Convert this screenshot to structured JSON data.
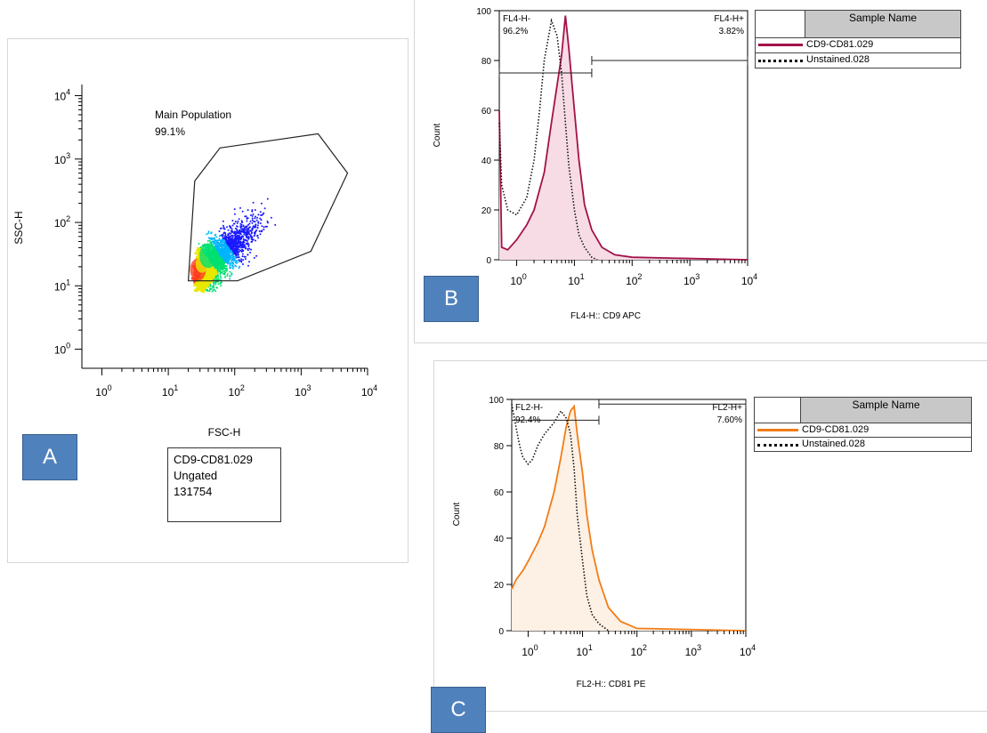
{
  "panels": {
    "a": {
      "tag": "A"
    },
    "b": {
      "tag": "B"
    },
    "c": {
      "tag": "C"
    }
  },
  "chart_data": [
    {
      "type": "scatter",
      "panel": "A",
      "xlabel": "FSC-H",
      "ylabel": "SSC-H",
      "xscale": "log",
      "yscale": "log",
      "xlim": [
        0.5,
        10000
      ],
      "ylim": [
        0.5,
        15000
      ],
      "x_ticks": [
        "10",
        "10",
        "10",
        "10",
        "10"
      ],
      "x_tick_exp": [
        "0",
        "1",
        "2",
        "3",
        "4"
      ],
      "y_ticks": [
        "10",
        "10",
        "10",
        "10",
        "10"
      ],
      "y_tick_exp": [
        "0",
        "1",
        "2",
        "3",
        "4"
      ],
      "gate": {
        "name": "Main Population",
        "percent": "99.1%",
        "vertices": [
          [
            20,
            12
          ],
          [
            25,
            450
          ],
          [
            60,
            1500
          ],
          [
            1800,
            2500
          ],
          [
            5000,
            600
          ],
          [
            1400,
            35
          ],
          [
            110,
            12
          ]
        ]
      },
      "info_box": [
        "CD9-CD81.029",
        "Ungated",
        "131754"
      ],
      "density_colors": [
        "#1a1aff",
        "#00b4ff",
        "#00e070",
        "#e8e800",
        "#ff4020"
      ]
    },
    {
      "type": "histogram",
      "panel": "B",
      "xlabel": "FL4-H:: CD9 APC",
      "ylabel": "Count",
      "xscale": "log",
      "xlim": [
        0.5,
        10000
      ],
      "ylim": [
        0,
        100
      ],
      "x_ticks": [
        "10",
        "10",
        "10",
        "10",
        "10"
      ],
      "x_tick_exp": [
        "0",
        "1",
        "2",
        "3",
        "4"
      ],
      "y_ticks": [
        "0",
        "20",
        "40",
        "60",
        "80",
        "100"
      ],
      "gates": [
        {
          "name": "FL4-H-",
          "percent": "96.2%",
          "range": [
            0.5,
            20
          ],
          "y": 75
        },
        {
          "name": "FL4-H+",
          "percent": "3.82%",
          "range": [
            20,
            10000
          ],
          "y": 80
        }
      ],
      "legend_header": "Sample Name",
      "series": [
        {
          "name": "CD9-CD81.029",
          "color": "#a3124a",
          "fill": "#f7dce6",
          "style": "solid",
          "x": [
            0.5,
            0.55,
            0.7,
            1,
            1.5,
            2,
            3,
            4,
            5,
            6,
            7,
            8,
            10,
            12,
            15,
            20,
            30,
            50,
            100,
            10000
          ],
          "y": [
            60,
            5,
            4,
            8,
            14,
            20,
            35,
            55,
            70,
            82,
            98,
            85,
            60,
            40,
            22,
            12,
            5,
            2,
            1,
            0
          ]
        },
        {
          "name": "Unstained.028",
          "color": "#111111",
          "style": "dotted",
          "x": [
            0.5,
            0.55,
            0.7,
            1,
            1.5,
            2,
            2.5,
            3,
            4,
            5,
            6,
            7,
            8,
            10,
            12,
            15,
            20,
            25
          ],
          "y": [
            55,
            30,
            20,
            18,
            25,
            40,
            60,
            80,
            96,
            90,
            75,
            55,
            38,
            20,
            10,
            5,
            1,
            0
          ]
        }
      ]
    },
    {
      "type": "histogram",
      "panel": "C",
      "xlabel": "FL2-H:: CD81 PE",
      "ylabel": "Count",
      "xscale": "log",
      "xlim": [
        0.5,
        10000
      ],
      "ylim": [
        0,
        100
      ],
      "x_ticks": [
        "10",
        "10",
        "10",
        "10",
        "10"
      ],
      "x_tick_exp": [
        "0",
        "1",
        "2",
        "3",
        "4"
      ],
      "y_ticks": [
        "0",
        "20",
        "40",
        "60",
        "80",
        "100"
      ],
      "gates": [
        {
          "name": "FL2-H-",
          "percent": "92.4%",
          "range": [
            0.5,
            20
          ],
          "y": 91
        },
        {
          "name": "FL2-H+",
          "percent": "7.60%",
          "range": [
            20,
            10000
          ],
          "y": 98
        }
      ],
      "legend_header": "Sample Name",
      "series": [
        {
          "name": "CD9-CD81.029",
          "color": "#f07d17",
          "fill": "#fdf0e4",
          "style": "solid",
          "x": [
            0.5,
            0.6,
            0.8,
            1,
            1.5,
            2,
            3,
            4,
            5,
            6,
            7,
            8,
            10,
            12,
            15,
            20,
            30,
            50,
            100,
            10000
          ],
          "y": [
            18,
            22,
            26,
            30,
            38,
            45,
            60,
            75,
            88,
            95,
            97,
            85,
            68,
            50,
            35,
            22,
            10,
            4,
            1,
            0
          ]
        },
        {
          "name": "Unstained.028",
          "color": "#111111",
          "style": "dotted",
          "x": [
            0.5,
            0.6,
            0.7,
            0.8,
            1,
            1.2,
            1.5,
            2,
            3,
            4,
            5,
            6,
            7,
            8,
            10,
            12,
            15,
            20,
            30
          ],
          "y": [
            98,
            88,
            80,
            75,
            72,
            74,
            80,
            85,
            90,
            95,
            92,
            85,
            70,
            50,
            30,
            15,
            7,
            3,
            0
          ]
        }
      ]
    }
  ]
}
